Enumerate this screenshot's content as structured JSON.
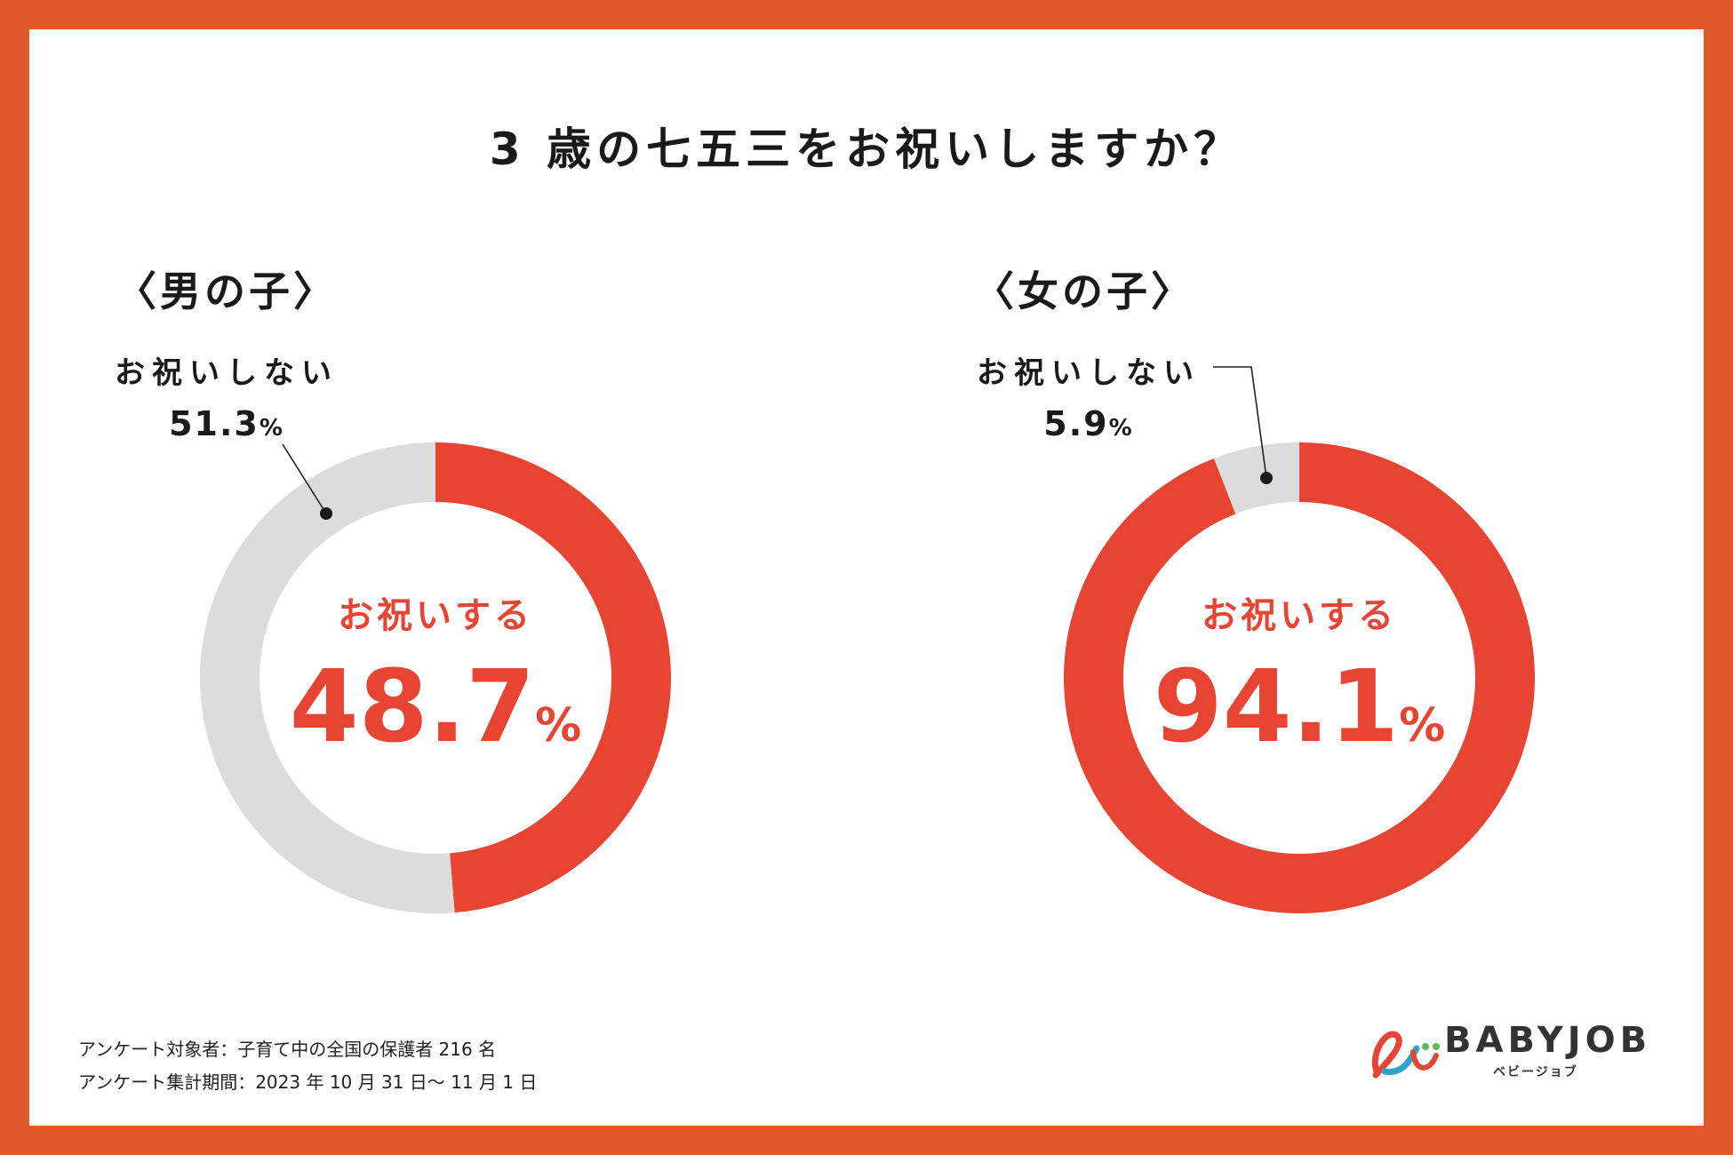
{
  "title": "3 歳の七五三をお祝いしますか？",
  "colors": {
    "frame": "#e05a2b",
    "celebrate": "#e84434",
    "not_celebrate": "#dcdcdc"
  },
  "chart_data": [
    {
      "type": "pie",
      "label": "〈男の子〉",
      "categories": [
        "お祝いする",
        "お祝いしない"
      ],
      "values": [
        48.7,
        51.3
      ],
      "center_label": "お祝いする",
      "center_value": "48.7",
      "callout_label": "お祝いしない",
      "callout_value": "51.3",
      "unit": "%"
    },
    {
      "type": "pie",
      "label": "〈女の子〉",
      "categories": [
        "お祝いする",
        "お祝いしない"
      ],
      "values": [
        94.1,
        5.9
      ],
      "center_label": "お祝いする",
      "center_value": "94.1",
      "callout_label": "お祝いしない",
      "callout_value": "5.9",
      "unit": "%"
    }
  ],
  "footnotes": [
    "アンケート対象者：子育て中の全国の保護者 216 名",
    "アンケート集計期間：2023 年 10 月 31 日〜 11 月 1 日"
  ],
  "logo": {
    "text": "BABYJOB",
    "sub": "ベビージョブ"
  }
}
